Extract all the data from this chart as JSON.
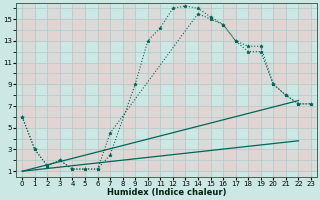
{
  "xlabel": "Humidex (Indice chaleur)",
  "bg_color": "#cce8e4",
  "grid_color_major": "#b8d8d4",
  "grid_color_minor": "#d4ecea",
  "line_color": "#006655",
  "xlim": [
    -0.5,
    23.5
  ],
  "ylim": [
    0.5,
    16.5
  ],
  "xticks": [
    0,
    1,
    2,
    3,
    4,
    5,
    6,
    7,
    8,
    9,
    10,
    11,
    12,
    13,
    14,
    15,
    16,
    17,
    18,
    19,
    20,
    21,
    22,
    23
  ],
  "yticks": [
    1,
    3,
    5,
    7,
    9,
    11,
    13,
    15
  ],
  "series": [
    {
      "x": [
        0,
        1,
        2,
        3,
        4,
        5,
        6,
        7,
        9,
        10,
        11,
        12,
        13,
        14,
        15,
        16,
        17,
        18,
        19,
        20,
        21,
        22,
        23
      ],
      "y": [
        6,
        3,
        1.5,
        2,
        1.2,
        1.2,
        1.2,
        2.5,
        9,
        13,
        14.2,
        16,
        16.2,
        16,
        15.2,
        14.5,
        13,
        12.5,
        12.5,
        9,
        8,
        7.2,
        7.2
      ],
      "marker": true,
      "dotted": true
    },
    {
      "x": [
        0,
        1,
        2,
        3,
        4,
        5,
        6,
        7,
        14,
        15,
        16,
        17,
        18,
        19,
        20,
        21,
        22,
        23
      ],
      "y": [
        6,
        3,
        1.5,
        2,
        1.2,
        1.2,
        1.2,
        4.5,
        15.5,
        15,
        14.5,
        13,
        12,
        12,
        9,
        8,
        7.2,
        7.2
      ],
      "marker": true,
      "dotted": true
    },
    {
      "x": [
        0,
        22
      ],
      "y": [
        1.0,
        7.5
      ],
      "marker": false,
      "dotted": false
    },
    {
      "x": [
        0,
        22
      ],
      "y": [
        1.0,
        3.8
      ],
      "marker": false,
      "dotted": false
    }
  ]
}
